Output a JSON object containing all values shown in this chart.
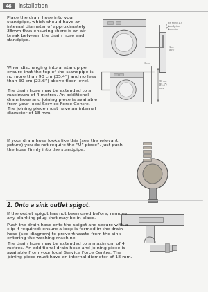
{
  "page_num": "46",
  "header_text": "Installation",
  "bg_color": "#f5f5f3",
  "header_bar_color": "#6b6b6b",
  "header_text_color": "#555555",
  "divider_color": "#bbbbbb",
  "body_text_color": "#222222",
  "section2_title": "2. Onto a sink outlet spigot.",
  "para1": "Place the drain hose into your\nstandpipe, which should have an\ninternal diameter of approximately\n38mm thus ensuring there is an air\nbreak between the drain hose and\nstandpipe.",
  "para2a": "When discharging into a  standpipe\nensure that the top of the standpipe is\nno more than 90 cm (35.4”) and no less\nthan 60 cm (23.6”) above floor level.",
  "para2b": "The drain hose may be extended to a\nmaximum of 4 metres. An additional\ndrain hose and joining piece is available\nfrom your local Service Force Centre.\nThe joining piece must have an internal\ndiameter of 18 mm.",
  "para2c": "If your drain hose looks like this (see the relevant\npcture) you do not require the “U” piece”. Just push\nthe hose firmly into the standpipe.",
  "para3a": "If the outlet spigot has not been used before, remove\nany blanking plug that may be in place.",
  "para3b": "Push the drain hose onto the spigot and secure with a\nclip if required; ensure a loop is formed in the drain\nhose (see diagram) to prevent waste from the sink\nentering the washing machine.",
  "para3c": "The drain hose may be extended to a maximum of 4\nmetres. An additional drain hose and joining piece is\navailable from your local Service Force Centre. The\njoining piece must have an internal diameter of 18 mm."
}
